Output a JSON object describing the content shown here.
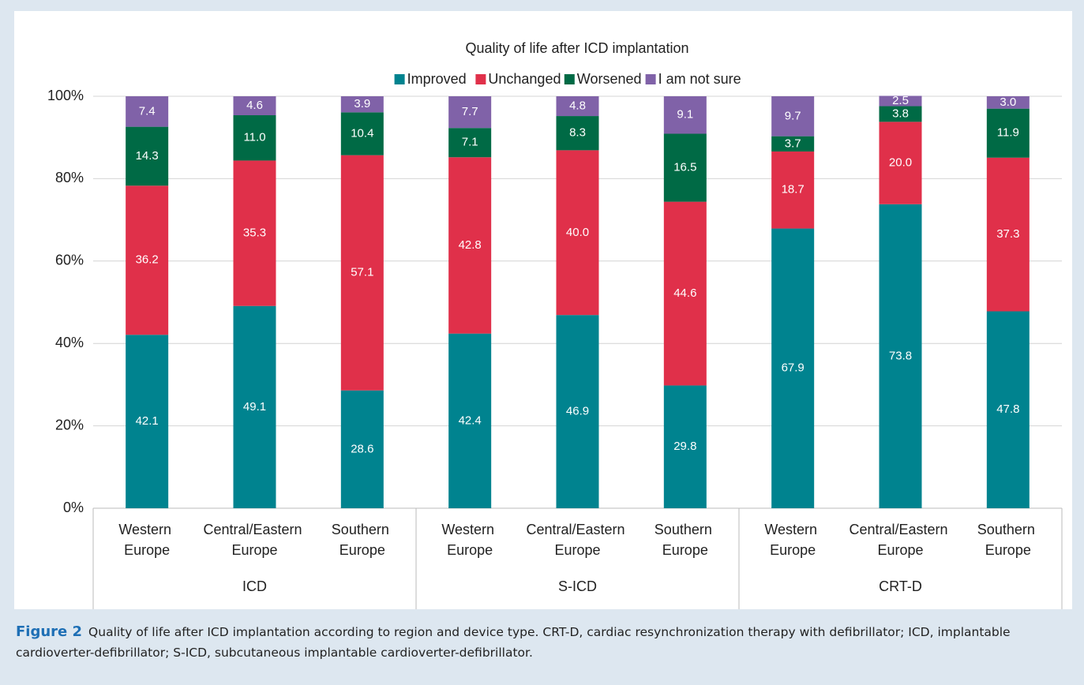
{
  "chart_data": {
    "type": "stacked_bar",
    "title": "Quality of life after ICD implantation",
    "categories": [
      "Western Europe",
      "Central/Eastern Europe",
      "Southern Europe",
      "Western Europe",
      "Central/Eastern Europe",
      "Southern Europe",
      "Western Europe",
      "Central/Eastern Europe",
      "Southern Europe"
    ],
    "groups": [
      "ICD",
      "S-ICD",
      "CRT-D"
    ],
    "series": [
      {
        "name": "Improved",
        "color": "#00838f",
        "values": [
          42.1,
          49.1,
          28.6,
          42.4,
          46.9,
          29.8,
          67.9,
          73.8,
          47.8
        ],
        "value_labels": [
          "42.1",
          "49.1",
          "28.6",
          "42.4",
          "46.9",
          "29.8",
          "67.9",
          "73.8",
          "47.8"
        ]
      },
      {
        "name": "Unchanged",
        "color": "#e0304a",
        "values": [
          36.2,
          35.3,
          57.1,
          42.8,
          40.0,
          44.6,
          18.7,
          20.0,
          37.3
        ],
        "value_labels": [
          "36.2",
          "35.3",
          "57.1",
          "42.8",
          "40.0",
          "44.6",
          "18.7",
          "20.0",
          "37.3"
        ]
      },
      {
        "name": "Worsened",
        "color": "#006a45",
        "values": [
          14.3,
          11.0,
          10.4,
          7.1,
          8.3,
          16.5,
          3.7,
          3.8,
          11.9
        ],
        "value_labels": [
          "14.3",
          "11.0",
          "10.4",
          "7.1",
          "8.3",
          "16.5",
          "3.7",
          "3.8",
          "11.9"
        ]
      },
      {
        "name": "I am not sure",
        "color": "#8062a8",
        "values": [
          7.4,
          4.6,
          3.9,
          7.7,
          4.8,
          9.1,
          9.7,
          2.5,
          3.0
        ],
        "value_labels": [
          "7.4",
          "4.6",
          "3.9",
          "7.7",
          "4.8",
          "9.1",
          "9.7",
          "2.5",
          "3.0"
        ]
      }
    ],
    "ylim": [
      0,
      100
    ],
    "yticks": [
      {
        "value": 0,
        "label": "0%"
      },
      {
        "value": 20,
        "label": "20%"
      },
      {
        "value": 40,
        "label": "40%"
      },
      {
        "value": 60,
        "label": "60%"
      },
      {
        "value": 80,
        "label": "80%"
      },
      {
        "value": 100,
        "label": "100%"
      }
    ],
    "grid": true,
    "legend": "top"
  },
  "caption": {
    "label": "Figure 2",
    "text": "Quality of life after ICD implantation according to region and device type. CRT-D, cardiac resynchronization therapy with defibrillator; ICD, implantable cardioverter-defibrillator; S-ICD, subcutaneous implantable cardioverter-defibrillator."
  }
}
